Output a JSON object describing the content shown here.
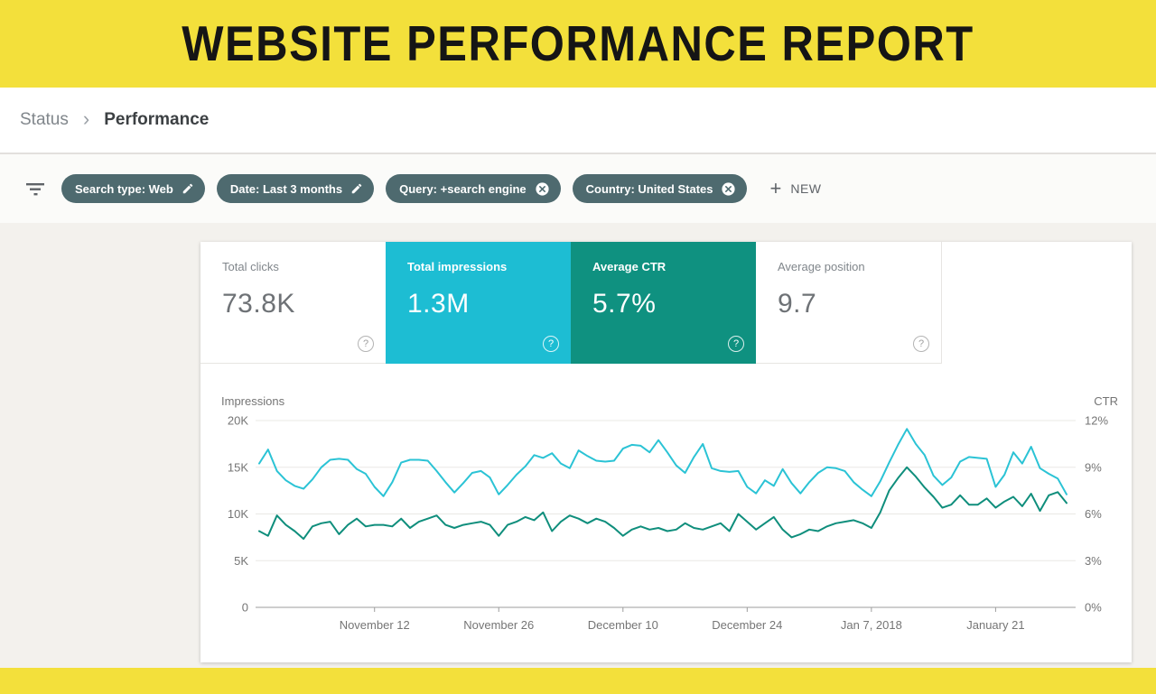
{
  "banner": {
    "title": "WEBSITE PERFORMANCE REPORT"
  },
  "breadcrumb": {
    "parent": "Status",
    "separator": "›",
    "current": "Performance"
  },
  "filter_bar": {
    "chips": [
      {
        "label": "Search type: Web",
        "icon": "edit"
      },
      {
        "label": "Date: Last 3 months",
        "icon": "edit"
      },
      {
        "label": "Query: +search engine",
        "icon": "remove"
      },
      {
        "label": "Country: United States",
        "icon": "remove"
      }
    ],
    "new_button": {
      "plus": "+",
      "label": "NEW"
    }
  },
  "metrics": {
    "help_glyph": "?",
    "tiles": [
      {
        "label": "Total clicks",
        "value": "73.8K",
        "selected": false
      },
      {
        "label": "Total impressions",
        "value": "1.3M",
        "selected": true,
        "bg": "#1dbdd3"
      },
      {
        "label": "Average CTR",
        "value": "5.7%",
        "selected": true,
        "bg": "#0f9180"
      },
      {
        "label": "Average position",
        "value": "9.7",
        "selected": false
      }
    ]
  },
  "chart_data": {
    "type": "line",
    "legend_position": "none",
    "grid": true,
    "left_axis": {
      "label": "Impressions",
      "range": [
        0,
        20000
      ],
      "ticks": [
        "0",
        "5K",
        "10K",
        "15K",
        "20K"
      ]
    },
    "right_axis": {
      "label": "CTR",
      "range": [
        0,
        12
      ],
      "ticks": [
        "0%",
        "3%",
        "6%",
        "9%",
        "12%"
      ]
    },
    "x_ticks": [
      {
        "label": "November 12",
        "day": 13
      },
      {
        "label": "November 26",
        "day": 27
      },
      {
        "label": "December 10",
        "day": 41
      },
      {
        "label": "December 24",
        "day": 55
      },
      {
        "label": "Jan 7, 2018",
        "day": 69
      },
      {
        "label": "January 21",
        "day": 83
      }
    ],
    "series": [
      {
        "name": "Impressions",
        "axis": "left",
        "color": "#2bc3d5",
        "values": [
          15400,
          16900,
          14600,
          13600,
          13000,
          12700,
          13700,
          15000,
          15800,
          15900,
          15800,
          14800,
          14300,
          12900,
          11900,
          13400,
          15500,
          15800,
          15800,
          15700,
          14600,
          13400,
          12300,
          13300,
          14400,
          14600,
          13900,
          12100,
          13100,
          14200,
          15100,
          16300,
          16000,
          16500,
          15400,
          14900,
          16800,
          16200,
          15700,
          15600,
          15700,
          17000,
          17400,
          17300,
          16600,
          17900,
          16600,
          15200,
          14400,
          16100,
          17500,
          14900,
          14600,
          14500,
          14600,
          12900,
          12200,
          13600,
          13000,
          14800,
          13300,
          12200,
          13400,
          14400,
          15000,
          14900,
          14600,
          13400,
          12600,
          11900,
          13500,
          15500,
          17400,
          19100,
          17500,
          16300,
          14100,
          13100,
          13900,
          15600,
          16100,
          16000,
          15900,
          12900,
          14200,
          16600,
          15400,
          17200,
          14900,
          14300,
          13800,
          12100
        ]
      },
      {
        "name": "CTR",
        "axis": "right",
        "color": "#0f8e7c",
        "values": [
          4.9,
          4.6,
          5.9,
          5.3,
          4.9,
          4.4,
          5.2,
          5.4,
          5.5,
          4.7,
          5.3,
          5.7,
          5.2,
          5.3,
          5.3,
          5.2,
          5.7,
          5.1,
          5.5,
          5.7,
          5.9,
          5.3,
          5.1,
          5.3,
          5.4,
          5.5,
          5.3,
          4.6,
          5.3,
          5.5,
          5.8,
          5.6,
          6.1,
          4.9,
          5.5,
          5.9,
          5.7,
          5.4,
          5.7,
          5.5,
          5.1,
          4.6,
          5.0,
          5.2,
          5.0,
          5.1,
          4.9,
          5.0,
          5.4,
          5.1,
          5.0,
          5.2,
          5.4,
          4.9,
          6.0,
          5.5,
          5.0,
          5.4,
          5.8,
          5.0,
          4.5,
          4.7,
          5.0,
          4.9,
          5.2,
          5.4,
          5.5,
          5.6,
          5.4,
          5.1,
          6.1,
          7.5,
          8.3,
          9.0,
          8.4,
          7.7,
          7.1,
          6.4,
          6.6,
          7.2,
          6.6,
          6.6,
          7.0,
          6.4,
          6.8,
          7.1,
          6.5,
          7.3,
          6.2,
          7.2,
          7.4,
          6.7
        ]
      }
    ]
  }
}
